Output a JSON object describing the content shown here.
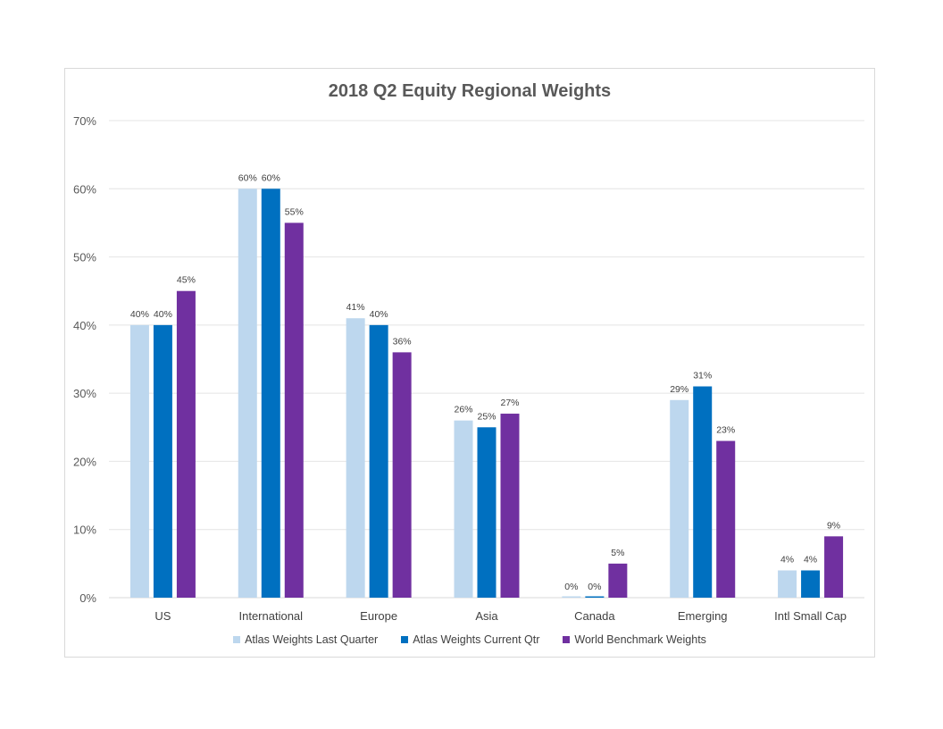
{
  "chart_data": {
    "type": "bar",
    "title": "2018 Q2 Equity Regional Weights",
    "categories": [
      "US",
      "International",
      "Europe",
      "Asia",
      "Canada",
      "Emerging",
      "Intl Small Cap"
    ],
    "series": [
      {
        "name": "Atlas Weights Last Quarter",
        "color": "#bdd7ee",
        "values": [
          40,
          60,
          41,
          26,
          0,
          29,
          4
        ],
        "labels": [
          "40%",
          "60%",
          "41%",
          "26%",
          "0%",
          "29%",
          "4%"
        ]
      },
      {
        "name": "Atlas Weights Current Qtr",
        "color": "#0070c0",
        "values": [
          40,
          60,
          40,
          25,
          0,
          31,
          4
        ],
        "labels": [
          "40%",
          "60%",
          "40%",
          "25%",
          "0%",
          "31%",
          "4%"
        ]
      },
      {
        "name": "World Benchmark Weights",
        "color": "#7030a0",
        "values": [
          45,
          55,
          36,
          27,
          5,
          23,
          9
        ],
        "labels": [
          "45%",
          "55%",
          "36%",
          "27%",
          "5%",
          "23%",
          "9%"
        ]
      }
    ],
    "yticks": [
      "0%",
      "10%",
      "20%",
      "30%",
      "40%",
      "50%",
      "60%",
      "70%"
    ],
    "ylim": [
      0,
      70
    ],
    "grid": true,
    "legend": "bottom"
  }
}
